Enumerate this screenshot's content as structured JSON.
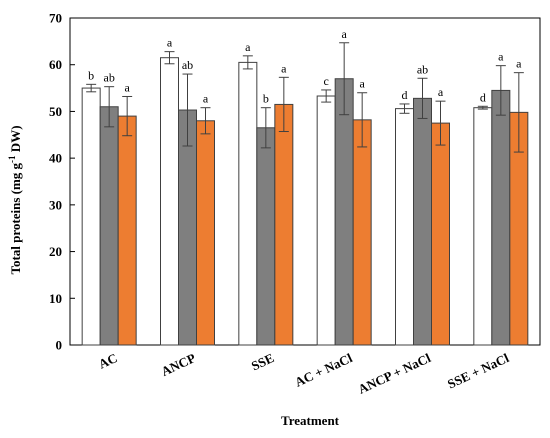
{
  "chart_data": {
    "type": "bar",
    "xlabel": "Treatment",
    "ylabel": "Total proteins (mg g",
    "ylabel_sup": "-1",
    "ylabel_suffix": " DW)",
    "ylim": [
      0,
      70
    ],
    "yticks": [
      0,
      10,
      20,
      30,
      40,
      50,
      60,
      70
    ],
    "grid": false,
    "legend": "none",
    "categories": [
      "AC",
      "ANCP",
      "SSE",
      "AC + NaCl",
      "ANCP + NaCl",
      "SSE + NaCl"
    ],
    "series": [
      {
        "color": "#ffffff",
        "values": [
          55.0,
          61.5,
          60.5,
          53.3,
          50.6,
          50.8
        ],
        "errors": [
          0.8,
          1.3,
          1.4,
          1.3,
          1.0,
          0.3
        ],
        "letters": [
          "b",
          "a",
          "a",
          "c",
          "d",
          "d"
        ]
      },
      {
        "color": "#7f7f7f",
        "values": [
          51.0,
          50.3,
          46.5,
          57.0,
          52.8,
          54.5
        ],
        "errors": [
          4.3,
          7.7,
          4.3,
          7.7,
          4.3,
          5.3
        ],
        "letters": [
          "ab",
          "ab",
          "b",
          "a",
          "ab",
          "a"
        ]
      },
      {
        "color": "#ed7d31",
        "values": [
          49.0,
          48.0,
          51.5,
          48.2,
          47.5,
          49.8
        ],
        "errors": [
          4.2,
          2.8,
          5.8,
          5.8,
          4.7,
          8.5
        ],
        "letters": [
          "a",
          "a",
          "a",
          "a",
          "a",
          "a"
        ]
      }
    ]
  }
}
